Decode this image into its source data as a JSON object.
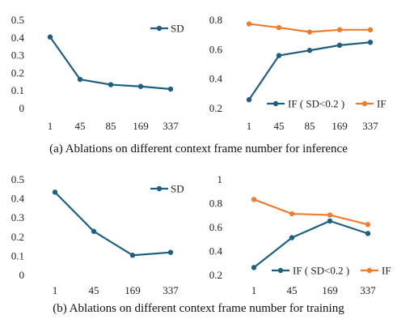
{
  "colors": {
    "series_blue": "#1f5f7f",
    "series_orange": "#ed7d31",
    "grid": "#d9d9d9"
  },
  "captions": {
    "top": "(a) Ablations on different context frame number for inference",
    "bottom": "(b) Ablations on different context frame number for training"
  },
  "chart_data": [
    {
      "type": "line",
      "categories": [
        "1",
        "45",
        "85",
        "169",
        "337"
      ],
      "series": [
        {
          "name": "SD",
          "values": [
            0.405,
            0.165,
            0.135,
            0.125,
            0.11
          ],
          "color": "#1f5f7f"
        }
      ],
      "ylim": [
        0,
        0.5
      ],
      "yticks": [
        "0",
        "0.1",
        "0.2",
        "0.3",
        "0.4",
        "0.5"
      ],
      "legend": "top-right",
      "grid": false
    },
    {
      "type": "line",
      "categories": [
        "1",
        "45",
        "85",
        "169",
        "337"
      ],
      "series": [
        {
          "name": "IF ( SD<0.2 )",
          "values": [
            0.26,
            0.56,
            0.595,
            0.63,
            0.65
          ],
          "color": "#1f5f7f"
        },
        {
          "name": "IF",
          "values": [
            0.775,
            0.75,
            0.72,
            0.735,
            0.735
          ],
          "color": "#ed7d31"
        }
      ],
      "ylim": [
        0.2,
        0.8
      ],
      "yticks": [
        "0.2",
        "0.4",
        "0.6",
        "0.8"
      ],
      "legend": "bottom",
      "grid": false
    },
    {
      "type": "line",
      "categories": [
        "1",
        "45",
        "169",
        "337"
      ],
      "series": [
        {
          "name": "SD",
          "values": [
            0.435,
            0.23,
            0.105,
            0.12
          ],
          "color": "#1f5f7f"
        }
      ],
      "ylim": [
        0,
        0.5
      ],
      "yticks": [
        "0",
        "0.1",
        "0.2",
        "0.3",
        "0.4",
        "0.5"
      ],
      "legend": "top-right",
      "grid": false
    },
    {
      "type": "line",
      "categories": [
        "1",
        "45",
        "169",
        "337"
      ],
      "series": [
        {
          "name": "IF ( SD<0.2 )",
          "values": [
            0.265,
            0.515,
            0.655,
            0.55
          ],
          "color": "#1f5f7f"
        },
        {
          "name": "IF",
          "values": [
            0.835,
            0.715,
            0.705,
            0.625
          ],
          "color": "#ed7d31"
        }
      ],
      "ylim": [
        0.2,
        1.0
      ],
      "yticks": [
        "0.2",
        "0.4",
        "0.6",
        "0.8",
        "1"
      ],
      "legend": "bottom",
      "grid": false
    }
  ]
}
